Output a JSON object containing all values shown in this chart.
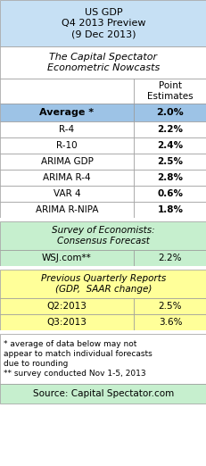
{
  "title_line1": "US GDP",
  "title_line2": "Q4 2013 Preview",
  "title_line3": "(9 Dec 2013)",
  "title_bg": "#c6e0f4",
  "section1_header": "The Capital Spectator\nEconometric Nowcasts",
  "section1_bg": "#ffffff",
  "col_header": "Point\nEstimates",
  "col_header_bg": "#ffffff",
  "average_label": "Average *",
  "average_value": "2.0%",
  "average_bg": "#9dc3e6",
  "rows": [
    {
      "label": "R-4",
      "value": "2.2%",
      "bg": "#ffffff"
    },
    {
      "label": "R-10",
      "value": "2.4%",
      "bg": "#ffffff"
    },
    {
      "label": "ARIMA GDP",
      "value": "2.5%",
      "bg": "#ffffff"
    },
    {
      "label": "ARIMA R-4",
      "value": "2.8%",
      "bg": "#ffffff"
    },
    {
      "label": "VAR 4",
      "value": "0.6%",
      "bg": "#ffffff"
    },
    {
      "label": "ARIMA R-NIPA",
      "value": "1.8%",
      "bg": "#ffffff"
    }
  ],
  "section2_header": "Survey of Economists:\nConsensus Forecast",
  "section2_bg": "#c6efce",
  "section2_row_label": "WSJ.com**",
  "section2_row_value": "2.2%",
  "section2_row_bg": "#c6efce",
  "section3_header": "Previous Quarterly Reports\n(GDP,  SAAR change)",
  "section3_bg": "#ffff99",
  "section3_rows": [
    {
      "label": "Q2:2013",
      "value": "2.5%",
      "bg": "#ffff99"
    },
    {
      "label": "Q3:2013",
      "value": "3.6%",
      "bg": "#ffff99"
    }
  ],
  "footnote": "* average of data below may not\nappear to match individual forecasts\ndue to rounding\n** survey conducted Nov 1-5, 2013",
  "footnote_bg": "#ffffff",
  "source": "Source: Capital Spectator.com",
  "source_bg": "#c6efce",
  "border_color": "#999999",
  "text_color": "#000000",
  "fig_w": 2.32,
  "fig_h": 5.22,
  "dpi": 100
}
